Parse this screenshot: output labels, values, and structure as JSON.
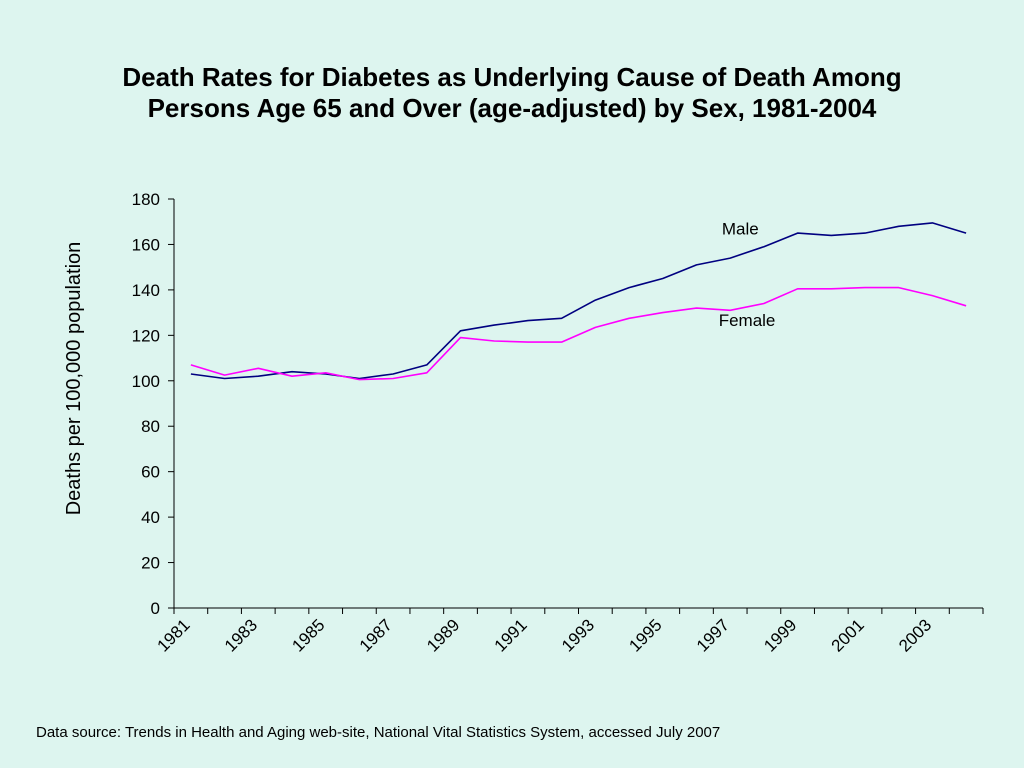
{
  "chart_data": {
    "type": "line",
    "title_lines": [
      "Death Rates for Diabetes as Underlying Cause of Death Among",
      "Persons Age 65 and Over (age-adjusted) by Sex, 1981-2004"
    ],
    "xlabel": "",
    "ylabel": "Deaths per 100,000 population",
    "x": [
      1981,
      1982,
      1983,
      1984,
      1985,
      1986,
      1987,
      1988,
      1989,
      1990,
      1991,
      1992,
      1993,
      1994,
      1995,
      1996,
      1997,
      1998,
      1999,
      2000,
      2001,
      2002,
      2003,
      2004
    ],
    "x_tick_labels": [
      "1981",
      "1983",
      "1985",
      "1987",
      "1989",
      "1991",
      "1993",
      "1995",
      "1997",
      "1999",
      "2001",
      "2003"
    ],
    "ylim": [
      0,
      180
    ],
    "y_ticks": [
      0,
      20,
      40,
      60,
      80,
      100,
      120,
      140,
      160,
      180
    ],
    "grid": false,
    "series": [
      {
        "name": "Male",
        "color": "#000080",
        "values": [
          103,
          101,
          102,
          104,
          103,
          101,
          103,
          107,
          122,
          124.5,
          126.5,
          127.5,
          135.5,
          141,
          145,
          151,
          154,
          159,
          165,
          164,
          165,
          168,
          169.5,
          165
        ]
      },
      {
        "name": "Female",
        "color": "#ff00ff",
        "values": [
          107,
          102.5,
          105.5,
          102,
          103.5,
          100.5,
          101,
          103.5,
          119,
          117.5,
          117,
          117,
          123.5,
          127.5,
          130,
          132,
          131,
          134,
          140.5,
          140.5,
          141,
          141,
          137.5,
          133
        ]
      }
    ]
  },
  "footer": {
    "source": "Data source: Trends in Health and Aging web-site, National Vital Statistics System, accessed July 2007"
  }
}
